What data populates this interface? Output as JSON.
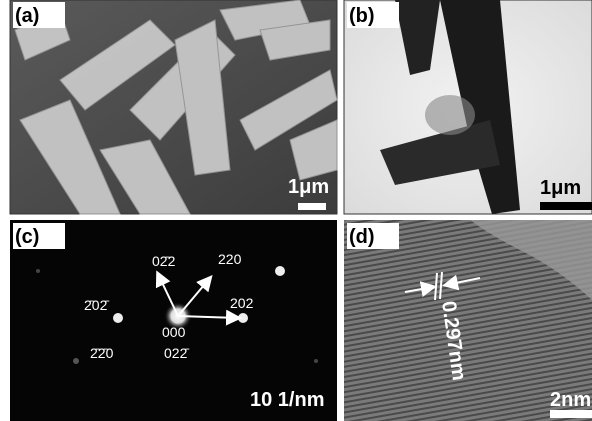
{
  "panels": [
    {
      "label": "(a)",
      "scale_bar": "1μm"
    },
    {
      "label": "(b)",
      "scale_bar": "1μm"
    },
    {
      "label": "(c)",
      "scale_bar": "10 1/nm",
      "annotations": [
        "02̄2",
        "220",
        "2̄02̄",
        "202",
        "000",
        "2̄2̄0",
        "022̄"
      ]
    },
    {
      "label": "(d)",
      "scale_bar": "2nm",
      "annotations": [
        "0.297nm"
      ]
    }
  ]
}
